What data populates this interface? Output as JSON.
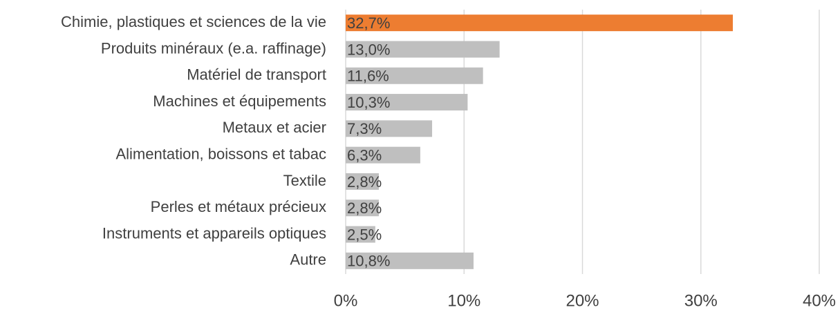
{
  "chart_data": {
    "type": "barh",
    "categories": [
      "Chimie, plastiques et sciences de la vie",
      "Produits minéraux (e.a. raffinage)",
      "Matériel de transport",
      "Machines et équipements",
      "Metaux et acier",
      "Alimentation, boissons et tabac",
      "Textile",
      "Perles et métaux précieux",
      "Instruments et appareils optiques",
      "Autre"
    ],
    "values": [
      32.7,
      13.0,
      11.6,
      10.3,
      7.3,
      6.3,
      2.8,
      2.8,
      2.5,
      10.8
    ],
    "value_labels": [
      "32,7%",
      "13,0%",
      "11,6%",
      "10,3%",
      "7,3%",
      "6,3%",
      "2,8%",
      "2,8%",
      "2,5%",
      "10,8%"
    ],
    "colors": [
      "#ed7d31",
      "#bfbfbf",
      "#bfbfbf",
      "#bfbfbf",
      "#bfbfbf",
      "#bfbfbf",
      "#bfbfbf",
      "#bfbfbf",
      "#bfbfbf",
      "#bfbfbf"
    ],
    "xlim": [
      0,
      40
    ],
    "xticks": [
      {
        "value": 0,
        "label": "0%"
      },
      {
        "value": 10,
        "label": "10%"
      },
      {
        "value": 20,
        "label": "20%"
      },
      {
        "value": 30,
        "label": "30%"
      },
      {
        "value": 40,
        "label": "40%"
      }
    ],
    "grid": true
  }
}
